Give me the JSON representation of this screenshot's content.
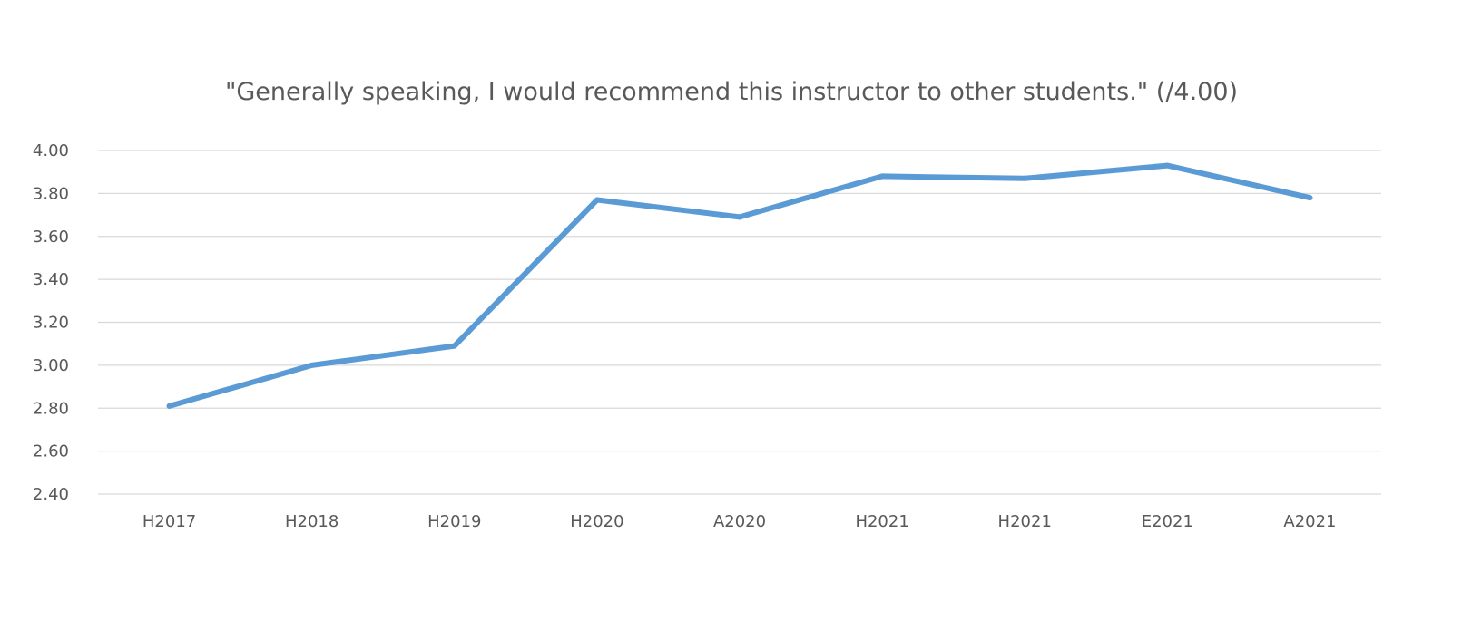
{
  "chart_data": {
    "type": "line",
    "title": "\"Generally speaking, I would recommend this instructor to other students.\" (/4.00)",
    "xlabel": "",
    "ylabel": "",
    "categories": [
      "H2017",
      "H2018",
      "H2019",
      "H2020",
      "A2020",
      "H2021",
      "H2021",
      "E2021",
      "A2021"
    ],
    "series": [
      {
        "values": [
          2.81,
          3.0,
          3.09,
          3.77,
          3.69,
          3.88,
          3.87,
          3.93,
          3.78
        ],
        "color": "#5b9bd5"
      }
    ],
    "ylim": [
      2.4,
      4.0
    ],
    "yticks": [
      "2.40",
      "2.60",
      "2.80",
      "3.00",
      "3.20",
      "3.40",
      "3.60",
      "3.80",
      "4.00"
    ],
    "grid": true,
    "legend": "none"
  }
}
